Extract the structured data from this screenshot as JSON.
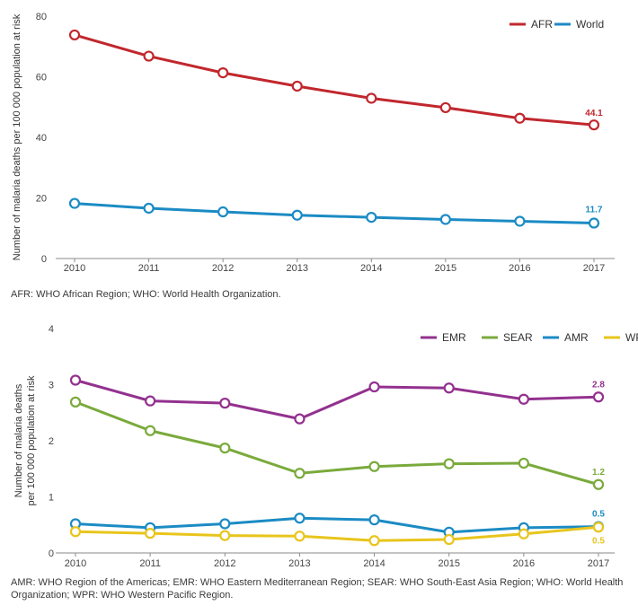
{
  "chart_data": [
    {
      "type": "line",
      "ylabel": "Number of malaria deaths per 100 000 population at risk",
      "xlabel": "",
      "x": [
        "2010",
        "2011",
        "2012",
        "2013",
        "2014",
        "2015",
        "2016",
        "2017"
      ],
      "ylim": [
        0,
        80
      ],
      "yticks": [
        0,
        20,
        40,
        60,
        80
      ],
      "legend_position": "top-right",
      "series": [
        {
          "name": "AFR",
          "color": "#c1272d",
          "values": [
            73.8,
            66.8,
            61.3,
            56.9,
            52.9,
            49.8,
            46.3,
            44.1
          ],
          "end_label": "44.1"
        },
        {
          "name": "World",
          "color": "#1b8bc4",
          "values": [
            18.2,
            16.6,
            15.4,
            14.3,
            13.6,
            12.9,
            12.3,
            11.7
          ],
          "end_label": "11.7"
        }
      ],
      "footnote": "AFR: WHO African Region; WHO: World Health Organization."
    },
    {
      "type": "line",
      "ylabel_lines": [
        "Number of malaria deaths",
        "per 100 000 population at risk"
      ],
      "xlabel": "",
      "x": [
        "2010",
        "2011",
        "2012",
        "2013",
        "2014",
        "2015",
        "2016",
        "2017"
      ],
      "ylim": [
        0,
        4
      ],
      "yticks": [
        0,
        1,
        2,
        3,
        4
      ],
      "legend_position": "top-right",
      "series": [
        {
          "name": "EMR",
          "color": "#93318f",
          "values": [
            3.08,
            2.71,
            2.67,
            2.39,
            2.96,
            2.94,
            2.74,
            2.78
          ],
          "end_label": "2.8"
        },
        {
          "name": "SEAR",
          "color": "#7aaa3c",
          "values": [
            2.69,
            2.18,
            1.87,
            1.42,
            1.54,
            1.59,
            1.6,
            1.22
          ],
          "end_label": "1.2"
        },
        {
          "name": "AMR",
          "color": "#1b8bc4",
          "values": [
            0.52,
            0.45,
            0.52,
            0.62,
            0.59,
            0.37,
            0.45,
            0.47
          ],
          "end_label": "0.5"
        },
        {
          "name": "WPR",
          "color": "#e8c51c",
          "values": [
            0.38,
            0.35,
            0.31,
            0.3,
            0.22,
            0.24,
            0.34,
            0.46
          ],
          "end_label": "0.5"
        }
      ],
      "footnote": "AMR: WHO Region of the Americas; EMR: WHO Eastern Mediterranean Region; SEAR: WHO South-East Asia Region; WHO: World Health Organization; WPR: WHO Western Pacific Region."
    }
  ]
}
